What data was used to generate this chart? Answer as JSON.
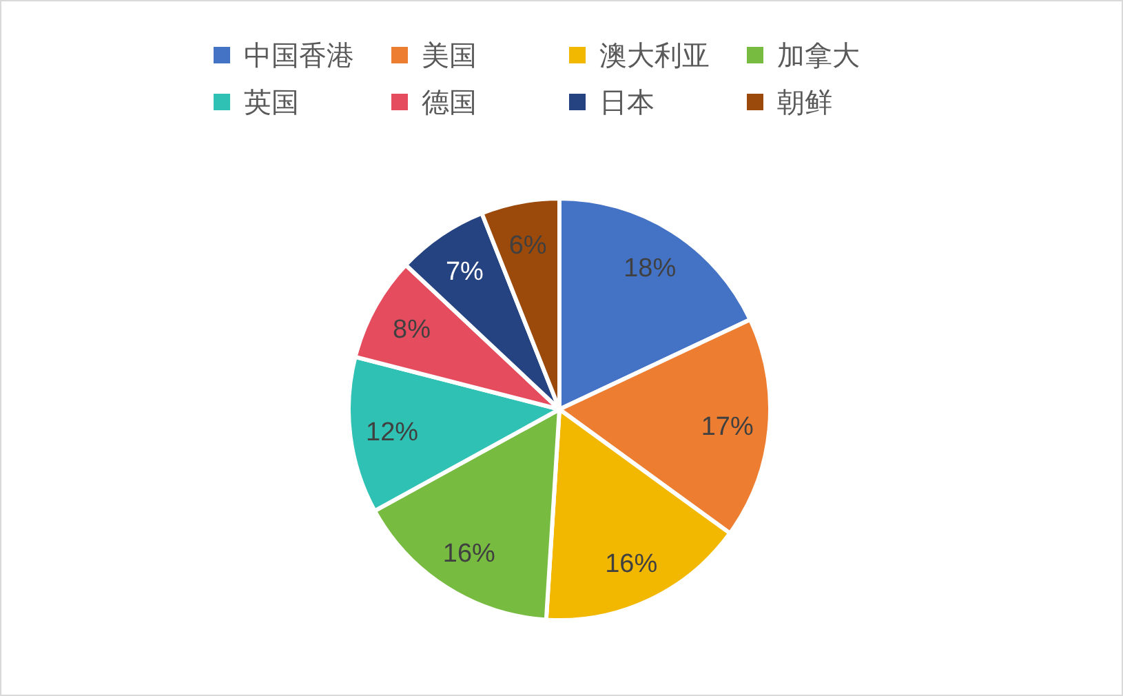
{
  "chart_data": {
    "type": "pie",
    "categories": [
      "中国香港",
      "美国",
      "澳大利亚",
      "加拿大",
      "英国",
      "德国",
      "日本",
      "朝鲜"
    ],
    "values": [
      18,
      17,
      16,
      16,
      12,
      8,
      7,
      6
    ],
    "colors": [
      "#4472c4",
      "#ed7d31",
      "#f2b800",
      "#77bb41",
      "#2fc1b3",
      "#e54c5e",
      "#254380",
      "#9b4a0c"
    ],
    "value_labels": [
      "18%",
      "17%",
      "16%",
      "16%",
      "12%",
      "8%",
      "7%",
      "6%"
    ],
    "legend": "top"
  }
}
